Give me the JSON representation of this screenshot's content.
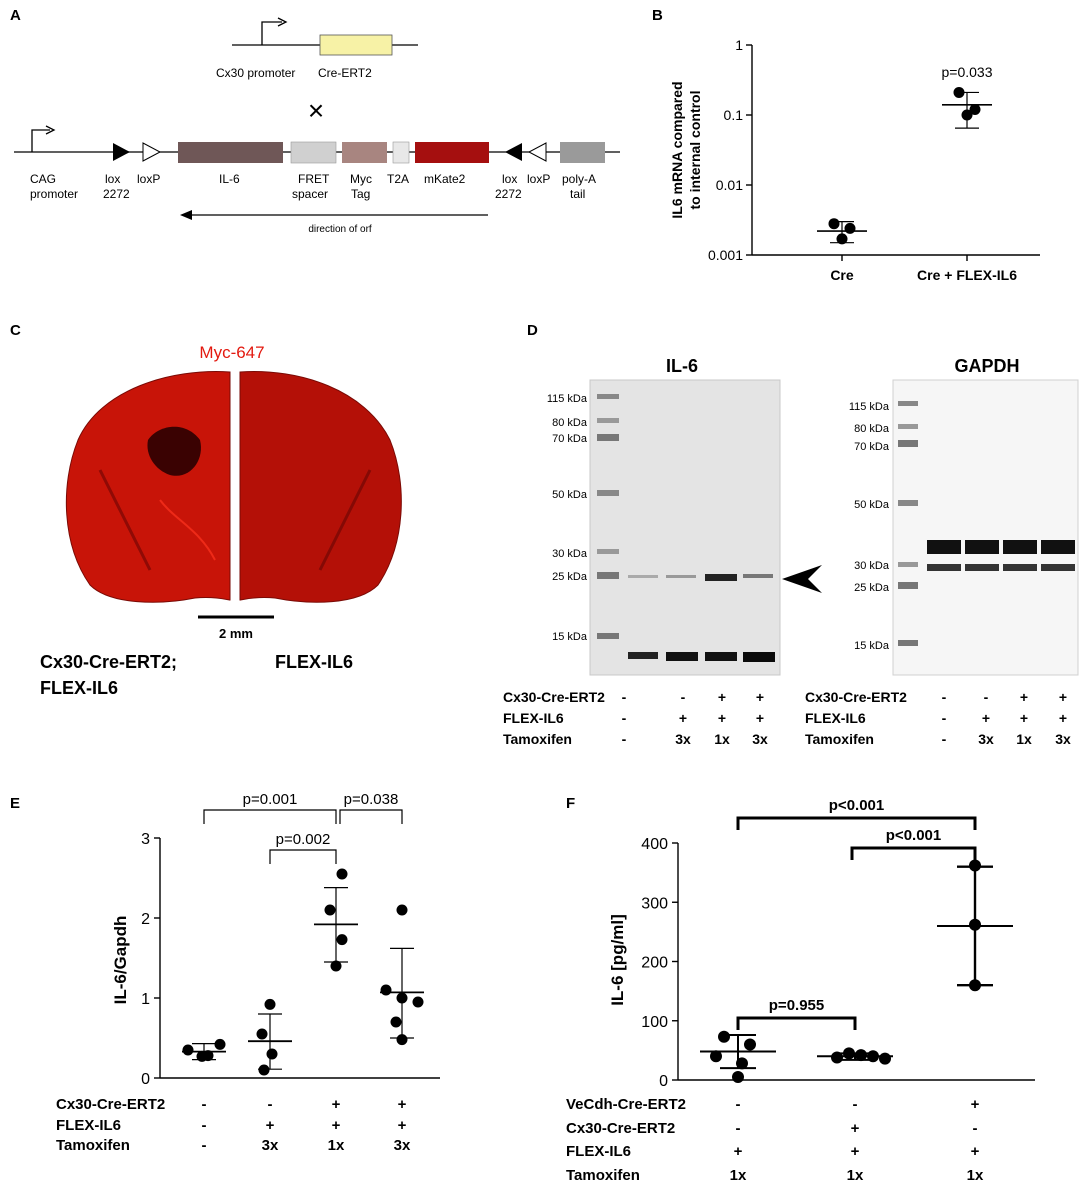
{
  "panel_a": {
    "letter": "A",
    "top_construct": {
      "promoter": "Cx30 promoter",
      "gene": "Cre-ERT2"
    },
    "cross_symbol": "×",
    "elements": [
      {
        "name": "CAG",
        "name2": "promoter"
      },
      {
        "name": "lox",
        "name2": "2272"
      },
      {
        "name": "loxP",
        "name2": ""
      },
      {
        "name": "IL-6",
        "name2": ""
      },
      {
        "name": "FRET",
        "name2": "spacer"
      },
      {
        "name": "Myc",
        "name2": "Tag"
      },
      {
        "name": "T2A",
        "name2": ""
      },
      {
        "name": "mKate2",
        "name2": ""
      },
      {
        "name": "lox",
        "name2": "2272"
      },
      {
        "name": "loxP",
        "name2": ""
      },
      {
        "name": "poly-A",
        "name2": "tail"
      }
    ],
    "direction_label": "direction of orf",
    "colors": {
      "il6": "#6f5757",
      "fret": "#d0d0d0",
      "myc": "#a88580",
      "t2a": "#e8e8e8",
      "mkate2": "#a50f0f",
      "polya": "#9a9a9a",
      "cre": "#f7f2a6"
    }
  },
  "panel_b": {
    "letter": "B",
    "chart_data": {
      "type": "scatter",
      "yscale": "log",
      "ylabel": "IL6 mRNA compared to internal control",
      "ylabel_line1": "IL6 mRNA compared",
      "ylabel_line2": "to internal control",
      "yticks": [
        "1",
        "0.1",
        "0.01",
        "0.001"
      ],
      "ylim": [
        0.001,
        1
      ],
      "categories": [
        "Cre",
        "Cre + FLEX-IL6"
      ],
      "series": [
        {
          "category": "Cre",
          "points": [
            0.0028,
            0.0024,
            0.0017
          ],
          "mean": 0.0022,
          "sd_low": 0.0015,
          "sd_high": 0.003
        },
        {
          "category": "Cre + FLEX-IL6",
          "points": [
            0.21,
            0.12,
            0.1
          ],
          "mean": 0.14,
          "sd_low": 0.065,
          "sd_high": 0.21
        }
      ],
      "annotation": "p=0.033"
    }
  },
  "panel_c": {
    "letter": "C",
    "stain": "Myc-647",
    "scale_bar": "2 mm",
    "label_left_1": "Cx30-Cre-ERT2;",
    "label_left_2": "FLEX-IL6",
    "label_right": "FLEX-IL6"
  },
  "panel_d": {
    "letter": "D",
    "blot1": {
      "title": "IL-6",
      "markers": [
        "115 kDa",
        "80 kDa",
        "70 kDa",
        "50 kDa",
        "30 kDa",
        "25 kDa",
        "15 kDa"
      ]
    },
    "blot2": {
      "title": "GAPDH",
      "markers": [
        "115 kDa",
        "80 kDa",
        "70 kDa",
        "50 kDa",
        "30 kDa",
        "25 kDa",
        "15 kDa"
      ]
    },
    "rows": [
      {
        "label": "Cx30-Cre-ERT2",
        "values": [
          "-",
          "-",
          "+",
          "+"
        ]
      },
      {
        "label": "FLEX-IL6",
        "values": [
          "-",
          "+",
          "+",
          "+"
        ]
      },
      {
        "label": "Tamoxifen",
        "values": [
          "-",
          "3x",
          "1x",
          "3x"
        ]
      }
    ]
  },
  "panel_e": {
    "letter": "E",
    "chart_data": {
      "type": "scatter",
      "ylabel": "IL-6/Gapdh",
      "ylim": [
        0,
        3
      ],
      "yticks": [
        "0",
        "1",
        "2",
        "3"
      ],
      "groups": [
        {
          "points": [
            0.35,
            0.27,
            0.42,
            0.28
          ],
          "mean": 0.33,
          "sd_low": 0.23,
          "sd_high": 0.43
        },
        {
          "points": [
            0.92,
            0.55,
            0.3,
            0.1
          ],
          "mean": 0.46,
          "sd_low": 0.11,
          "sd_high": 0.8
        },
        {
          "points": [
            2.55,
            2.1,
            1.73,
            1.4
          ],
          "mean": 1.92,
          "sd_low": 1.45,
          "sd_high": 2.38
        },
        {
          "points": [
            2.1,
            1.1,
            1.0,
            0.95,
            0.7,
            0.48
          ],
          "mean": 1.07,
          "sd_low": 0.5,
          "sd_high": 1.62
        }
      ],
      "comparisons": [
        "p=0.001",
        "p=0.038",
        "p=0.002"
      ],
      "rows": [
        {
          "label": "Cx30-Cre-ERT2",
          "values": [
            "-",
            "-",
            "+",
            "+"
          ]
        },
        {
          "label": "FLEX-IL6",
          "values": [
            "-",
            "+",
            "+",
            "+"
          ]
        },
        {
          "label": "Tamoxifen",
          "values": [
            "-",
            "3x",
            "1x",
            "3x"
          ]
        }
      ]
    }
  },
  "panel_f": {
    "letter": "F",
    "chart_data": {
      "type": "scatter",
      "ylabel": "IL-6 [pg/ml]",
      "ylim": [
        0,
        400
      ],
      "yticks": [
        "0",
        "100",
        "200",
        "300",
        "400"
      ],
      "groups": [
        {
          "points": [
            73,
            60,
            40,
            28,
            5
          ],
          "mean": 48,
          "sd_low": 20,
          "sd_high": 76
        },
        {
          "points": [
            45,
            42,
            40,
            38,
            36
          ],
          "mean": 40,
          "sd_low": 34,
          "sd_high": 45
        },
        {
          "points": [
            362,
            262,
            160
          ],
          "mean": 260,
          "sd_low": 160,
          "sd_high": 360
        }
      ],
      "comparisons": [
        "p<0.001",
        "p<0.001",
        "p=0.955"
      ],
      "rows": [
        {
          "label": "VeCdh-Cre-ERT2",
          "values": [
            "-",
            "-",
            "+"
          ]
        },
        {
          "label": "Cx30-Cre-ERT2",
          "values": [
            "-",
            "+",
            "-"
          ]
        },
        {
          "label": "FLEX-IL6",
          "values": [
            "+",
            "+",
            "+"
          ]
        },
        {
          "label": "Tamoxifen",
          "values": [
            "1x",
            "1x",
            "1x"
          ]
        }
      ]
    }
  }
}
